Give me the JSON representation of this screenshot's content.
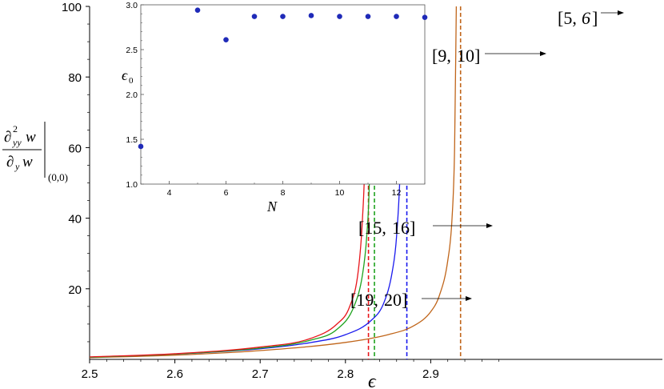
{
  "chart_data": [
    {
      "type": "line",
      "xlabel": "ϵ",
      "ylabel": "∂²yy w / ∂y w |(0,0)",
      "xlim": [
        2.5,
        3.0
      ],
      "ylim": [
        0,
        100
      ],
      "x_ticks": [
        2.5,
        2.6,
        2.7,
        2.8,
        2.9
      ],
      "y_ticks": [
        20,
        40,
        60,
        80,
        100
      ],
      "grid": false,
      "series": [
        {
          "name": "[5, 6]",
          "color": "#c0651a",
          "asymptote": 2.935,
          "points": [
            [
              2.5,
              0.5
            ],
            [
              2.6,
              1.2
            ],
            [
              2.7,
              2.5
            ],
            [
              2.8,
              4.8
            ],
            [
              2.85,
              7.0
            ],
            [
              2.88,
              9.5
            ],
            [
              2.9,
              13.5
            ],
            [
              2.91,
              18.0
            ],
            [
              2.92,
              28.0
            ],
            [
              2.925,
              40.0
            ],
            [
              2.928,
              60.0
            ],
            [
              2.93,
              100.0
            ]
          ]
        },
        {
          "name": "[9, 10]",
          "color": "#1a1aee",
          "asymptote": 2.872,
          "points": [
            [
              2.5,
              0.6
            ],
            [
              2.6,
              1.5
            ],
            [
              2.7,
              3.0
            ],
            [
              2.76,
              4.8
            ],
            [
              2.8,
              7.0
            ],
            [
              2.83,
              11.0
            ],
            [
              2.845,
              16.0
            ],
            [
              2.855,
              25.0
            ],
            [
              2.86,
              35.0
            ],
            [
              2.865,
              60.0
            ],
            [
              2.868,
              100.0
            ]
          ]
        },
        {
          "name": "[15, 16]",
          "color": "#1fa31f",
          "asymptote": 2.834,
          "points": [
            [
              2.5,
              0.6
            ],
            [
              2.6,
              1.5
            ],
            [
              2.7,
              3.2
            ],
            [
              2.76,
              5.5
            ],
            [
              2.79,
              8.5
            ],
            [
              2.81,
              15.0
            ],
            [
              2.82,
              24.0
            ],
            [
              2.825,
              35.0
            ],
            [
              2.828,
              50.0
            ],
            [
              2.83,
              80.0
            ],
            [
              2.831,
              100.0
            ]
          ]
        },
        {
          "name": "[19, 20]",
          "color": "#e8151b",
          "asymptote": 2.827,
          "points": [
            [
              2.5,
              0.7
            ],
            [
              2.6,
              1.6
            ],
            [
              2.7,
              3.5
            ],
            [
              2.76,
              6.0
            ],
            [
              2.79,
              10.0
            ],
            [
              2.805,
              15.0
            ],
            [
              2.815,
              25.0
            ],
            [
              2.82,
              40.0
            ],
            [
              2.823,
              60.0
            ],
            [
              2.825,
              100.0
            ]
          ]
        }
      ],
      "annotations": [
        {
          "text": "[5, 6]",
          "series": "[5, 6]"
        },
        {
          "text": "[9, 10]",
          "series": "[9, 10]"
        },
        {
          "text": "[15, 16]",
          "series": "[15, 16]"
        },
        {
          "text": "[19, 20]",
          "series": "[19, 20]"
        }
      ]
    },
    {
      "type": "scatter",
      "xlabel": "N",
      "ylabel": "ϵ0",
      "xlim": [
        3,
        13
      ],
      "ylim": [
        1.0,
        3.0
      ],
      "x_ticks": [
        4,
        6,
        8,
        10,
        12
      ],
      "y_ticks": [
        1.0,
        1.5,
        2.0,
        2.5,
        3.0
      ],
      "grid": false,
      "color": "#1f2ab8",
      "points": [
        [
          3,
          1.42
        ],
        [
          5,
          2.94
        ],
        [
          6,
          2.61
        ],
        [
          7,
          2.87
        ],
        [
          8,
          2.87
        ],
        [
          9,
          2.88
        ],
        [
          10,
          2.87
        ],
        [
          11,
          2.87
        ],
        [
          12,
          2.87
        ],
        [
          13,
          2.86
        ]
      ]
    }
  ]
}
